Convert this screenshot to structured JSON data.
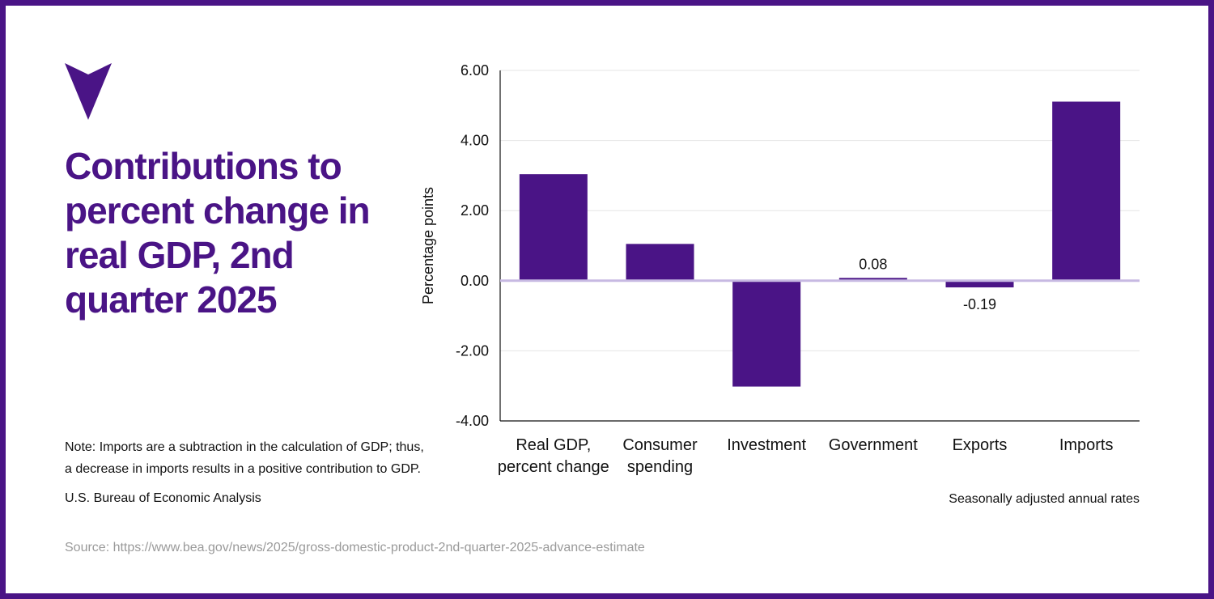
{
  "colors": {
    "brand": "#4a1486",
    "bar": "#4a1486",
    "zero_line": "#c7b9e2",
    "grid": "#e6e6e6",
    "source_text": "#9a9a9a"
  },
  "logo": {
    "icon": "downward-triangle-logo-icon"
  },
  "title": "Contributions to percent change in real GDP, 2nd quarter 2025",
  "note": "Note: Imports are a subtraction in the calculation of GDP; thus, a decrease in imports results in a positive contribution to GDP.",
  "organization": "U.S. Bureau of Economic Analysis",
  "rates_note": "Seasonally adjusted annual rates",
  "source": "Source: https://www.bea.gov/news/2025/gross-domestic-product-2nd-quarter-2025-advance-estimate",
  "chart_data": {
    "type": "bar",
    "title": "Contributions to percent change in real GDP, 2nd quarter 2025",
    "xlabel": "",
    "ylabel": "Percentage points",
    "ylim": [
      -4,
      6
    ],
    "yticks": [
      6,
      4,
      2,
      0,
      -2,
      -4
    ],
    "ytick_labels": [
      "6.00",
      "4.00",
      "2.00",
      "0.00",
      "-2.00",
      "-4.00"
    ],
    "grid": true,
    "categories": [
      [
        "Real GDP,",
        "percent change"
      ],
      [
        "Consumer",
        "spending"
      ],
      [
        "Investment"
      ],
      [
        "Government"
      ],
      [
        "Exports"
      ],
      [
        "Imports"
      ]
    ],
    "values": [
      3.04,
      1.05,
      -3.02,
      0.08,
      -0.19,
      5.11
    ],
    "data_labels": [
      {
        "index": 3,
        "text": "0.08"
      },
      {
        "index": 4,
        "text": "-0.19"
      }
    ]
  }
}
